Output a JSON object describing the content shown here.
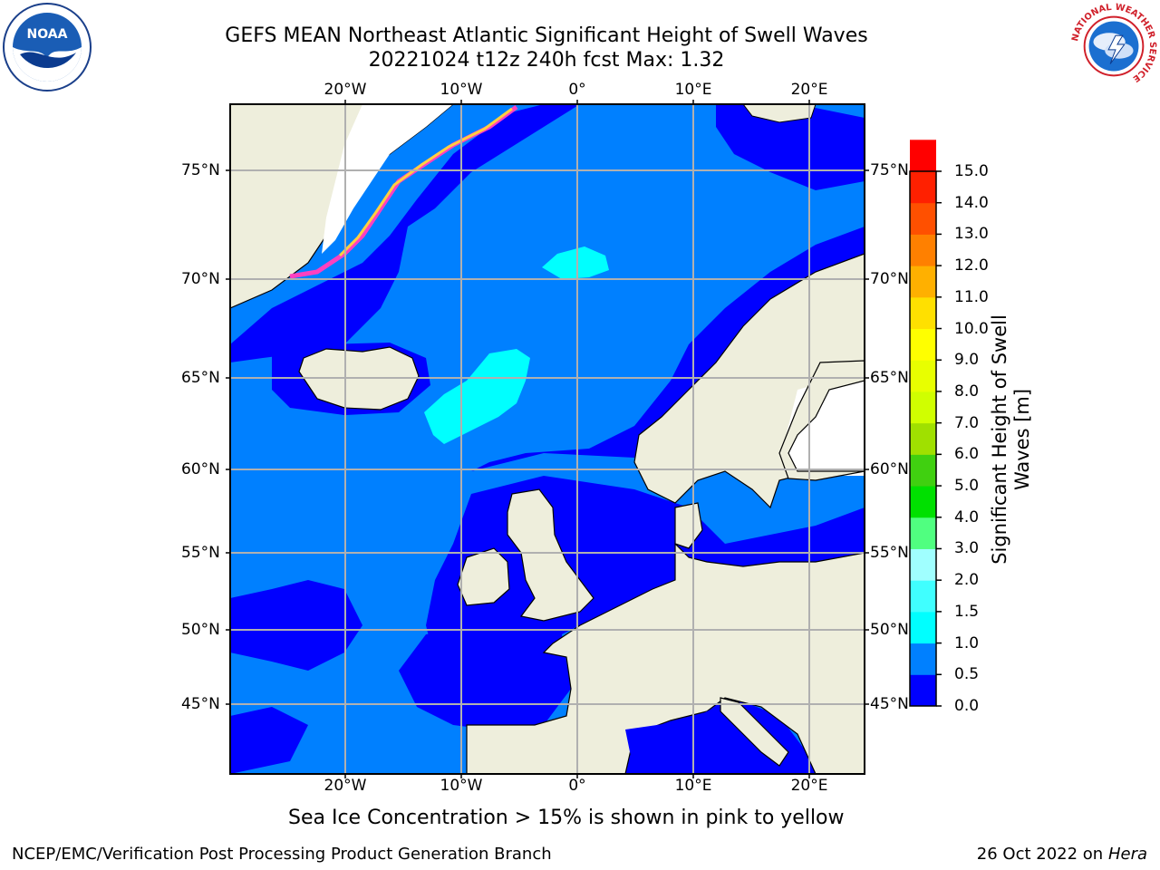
{
  "title_line1": "GEFS MEAN Northeast Atlantic Significant Height of Swell Waves",
  "title_line2": "20221024 t12z 240h fcst   Max: 1.32",
  "lon_labels": [
    "20°W",
    "10°W",
    "0°",
    "10°E",
    "20°E"
  ],
  "lat_labels": [
    "75°N",
    "70°N",
    "65°N",
    "60°N",
    "55°N",
    "50°N",
    "45°N"
  ],
  "colorbar": {
    "title_line1": "Significant Height of Swell",
    "title_line2": "Waves [m]",
    "ticks": [
      "15.0",
      "14.0",
      "13.0",
      "12.0",
      "11.0",
      "10.0",
      "9.0",
      "8.0",
      "7.0",
      "6.0",
      "5.0",
      "4.0",
      "3.0",
      "2.0",
      "1.5",
      "1.0",
      "0.5",
      "0.0"
    ],
    "colors": [
      "#0000ff",
      "#0080ff",
      "#00ffff",
      "#40ffff",
      "#a0ffff",
      "#50ff80",
      "#00e000",
      "#40d010",
      "#a0e000",
      "#d0ff00",
      "#e8ff00",
      "#ffff00",
      "#ffe000",
      "#ffb000",
      "#ff8000",
      "#ff5000",
      "#ff2000",
      "#ff0000"
    ]
  },
  "colors": {
    "land": "#eeeedc",
    "ocean_low": "#0080ff",
    "ocean_very_low": "#0000ff",
    "swell_mid": "#00ffff",
    "grid": "#b0b0b0"
  },
  "note": "Sea Ice Concentration > 15% is shown in pink to yellow",
  "footer_left": "NCEP/EMC/Verification Post Processing Product Generation Branch",
  "footer_date": "26 Oct 2022 on",
  "footer_host": "Hera",
  "logos": {
    "noaa_text": "NOAA",
    "nws_text": "NATIONAL WEATHER SERVICE"
  }
}
